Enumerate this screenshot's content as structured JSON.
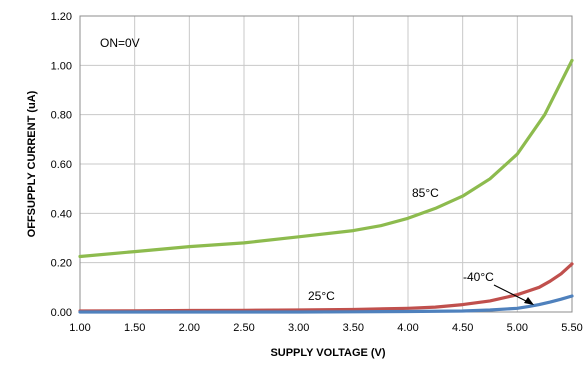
{
  "chart_data": {
    "type": "line",
    "xlabel": "SUPPLY VOLTAGE (V)",
    "ylabel": "OFFSUPPLY CURRENT (uA)",
    "xlim": [
      1.0,
      5.5
    ],
    "ylim": [
      0.0,
      1.2
    ],
    "xticks": [
      "1.00",
      "1.50",
      "2.00",
      "2.50",
      "3.00",
      "3.50",
      "4.00",
      "4.50",
      "5.00",
      "5.50"
    ],
    "yticks": [
      "0.00",
      "0.20",
      "0.40",
      "0.60",
      "0.80",
      "1.00",
      "1.20"
    ],
    "grid": true,
    "annotations": {
      "condition": "ON=0V",
      "label_85": "85°C",
      "label_25": "25°C",
      "label_m40": "-40°C"
    },
    "series": [
      {
        "name": "85°C",
        "color": "#8DBB4E",
        "x": [
          1.0,
          1.5,
          2.0,
          2.5,
          3.0,
          3.5,
          3.75,
          4.0,
          4.25,
          4.5,
          4.75,
          5.0,
          5.25,
          5.5
        ],
        "y": [
          0.225,
          0.245,
          0.265,
          0.28,
          0.305,
          0.33,
          0.35,
          0.38,
          0.42,
          0.47,
          0.54,
          0.64,
          0.8,
          1.02
        ]
      },
      {
        "name": "25°C",
        "color": "#C0504D",
        "x": [
          1.0,
          1.5,
          2.0,
          2.5,
          3.0,
          3.5,
          4.0,
          4.25,
          4.5,
          4.75,
          5.0,
          5.1,
          5.2,
          5.3,
          5.4,
          5.5
        ],
        "y": [
          0.004,
          0.005,
          0.006,
          0.007,
          0.008,
          0.01,
          0.015,
          0.02,
          0.03,
          0.045,
          0.07,
          0.085,
          0.1,
          0.125,
          0.155,
          0.195
        ]
      },
      {
        "name": "-40°C",
        "color": "#4F81BD",
        "x": [
          1.0,
          2.0,
          3.0,
          3.5,
          4.0,
          4.5,
          4.75,
          5.0,
          5.1,
          5.2,
          5.3,
          5.4,
          5.5
        ],
        "y": [
          0.0,
          0.0,
          0.0,
          0.001,
          0.002,
          0.004,
          0.008,
          0.015,
          0.022,
          0.03,
          0.04,
          0.052,
          0.065
        ]
      }
    ]
  }
}
